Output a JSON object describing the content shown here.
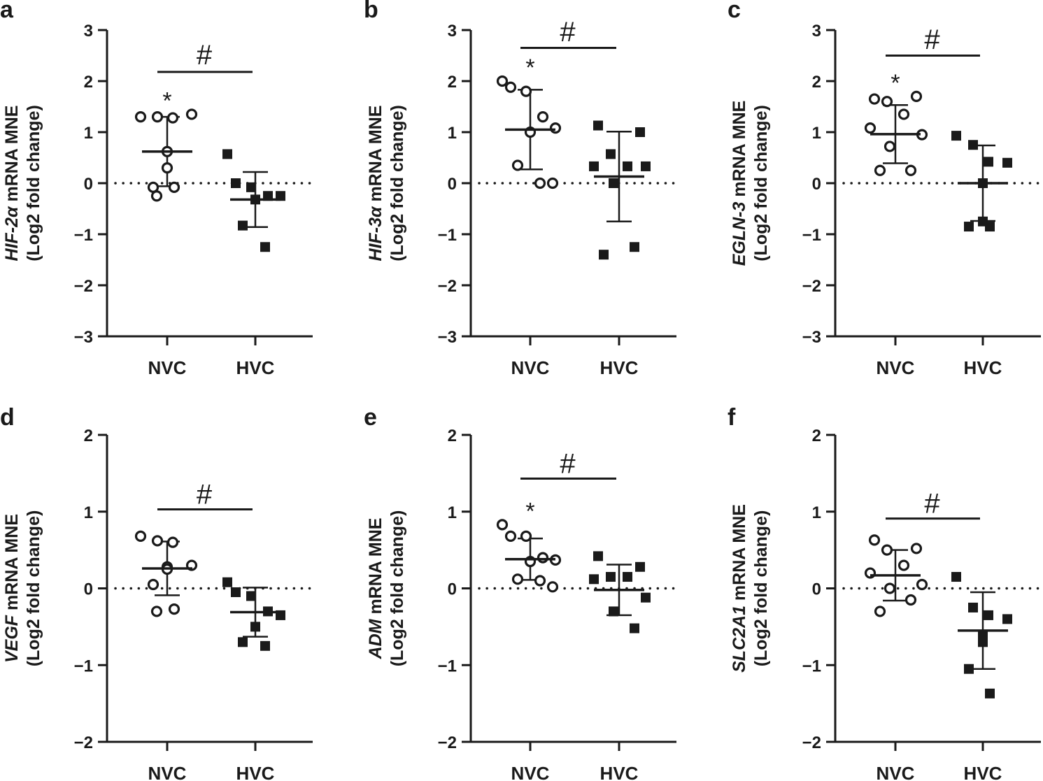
{
  "chart_data": [
    {
      "panel_letter": "a",
      "type": "scatter",
      "ylabel_gene": "HIF-2α",
      "ylabel_suffix": " mRNA MNE",
      "ylabel_line2": "(Log2 fold change)",
      "ylim": [
        -3,
        3
      ],
      "yticks": [
        -3,
        -2,
        -1,
        0,
        1,
        2,
        3
      ],
      "categories": [
        "NVC",
        "HVC"
      ],
      "groups": [
        {
          "name": "NVC",
          "marker": "open-circle",
          "values": [
            1.3,
            1.3,
            1.28,
            1.35,
            0.62,
            0.3,
            -0.08,
            -0.08,
            -0.25
          ],
          "mean": 0.62,
          "sd": 0.68,
          "annotation": "*"
        },
        {
          "name": "HVC",
          "marker": "filled-square",
          "values": [
            0.57,
            0.0,
            -0.08,
            -0.25,
            -0.25,
            -0.32,
            -0.83,
            -1.25
          ],
          "mean": -0.32,
          "sd": 0.54,
          "annotation": ""
        }
      ],
      "significance": {
        "label": "#",
        "y": 2.18,
        "label_y": 2.55
      },
      "reference_line": 0
    },
    {
      "panel_letter": "b",
      "type": "scatter",
      "ylabel_gene": "HIF-3α",
      "ylabel_suffix": " mRNA MNE",
      "ylabel_line2": "(Log2 fold change)",
      "ylim": [
        -3,
        3
      ],
      "yticks": [
        -3,
        -2,
        -1,
        0,
        1,
        2,
        3
      ],
      "categories": [
        "NVC",
        "HVC"
      ],
      "groups": [
        {
          "name": "NVC",
          "marker": "open-circle",
          "values": [
            2.0,
            1.88,
            1.8,
            1.3,
            1.08,
            1.0,
            0.35,
            0.0,
            0.0
          ],
          "mean": 1.05,
          "sd": 0.78,
          "annotation": "*"
        },
        {
          "name": "HVC",
          "marker": "filled-square",
          "values": [
            1.13,
            1.0,
            0.57,
            0.33,
            0.33,
            0.33,
            0.0,
            -1.25,
            -1.4
          ],
          "mean": 0.13,
          "sd": 0.88,
          "annotation": ""
        }
      ],
      "significance": {
        "label": "#",
        "y": 2.65,
        "label_y": 3.0
      },
      "reference_line": 0
    },
    {
      "panel_letter": "c",
      "type": "scatter",
      "ylabel_gene": "EGLN-3",
      "ylabel_suffix": " mRNA MNE",
      "ylabel_line2": "(Log2 fold change)",
      "ylim": [
        -3,
        3
      ],
      "yticks": [
        -3,
        -2,
        -1,
        0,
        1,
        2,
        3
      ],
      "categories": [
        "NVC",
        "HVC"
      ],
      "groups": [
        {
          "name": "NVC",
          "marker": "open-circle",
          "values": [
            1.65,
            1.7,
            1.6,
            1.35,
            1.08,
            0.95,
            0.72,
            0.25,
            0.25
          ],
          "mean": 0.96,
          "sd": 0.57,
          "annotation": "*"
        },
        {
          "name": "HVC",
          "marker": "filled-square",
          "values": [
            0.93,
            0.75,
            0.42,
            0.4,
            0.0,
            -0.75,
            -0.85,
            -0.85
          ],
          "mean": 0.0,
          "sd": 0.74,
          "annotation": ""
        }
      ],
      "significance": {
        "label": "#",
        "y": 2.5,
        "label_y": 2.85
      },
      "reference_line": 0
    },
    {
      "panel_letter": "d",
      "type": "scatter",
      "ylabel_gene": "VEGF",
      "ylabel_suffix": " mRNA MNE",
      "ylabel_line2": "(Log2 fold change)",
      "ylim": [
        -2,
        2
      ],
      "yticks": [
        -2,
        -1,
        0,
        1,
        2
      ],
      "categories": [
        "NVC",
        "HVC"
      ],
      "groups": [
        {
          "name": "NVC",
          "marker": "open-circle",
          "values": [
            0.68,
            0.62,
            0.6,
            0.3,
            0.28,
            0.25,
            0.05,
            -0.27,
            -0.3
          ],
          "mean": 0.26,
          "sd": 0.35,
          "annotation": ""
        },
        {
          "name": "HVC",
          "marker": "filled-square",
          "values": [
            0.08,
            -0.05,
            -0.1,
            -0.3,
            -0.35,
            -0.5,
            -0.7,
            -0.75
          ],
          "mean": -0.31,
          "sd": 0.32,
          "annotation": ""
        }
      ],
      "significance": {
        "label": "#",
        "y": 1.03,
        "label_y": 1.25
      },
      "reference_line": 0
    },
    {
      "panel_letter": "e",
      "type": "scatter",
      "ylabel_gene": "ADM",
      "ylabel_suffix": " mRNA MNE",
      "ylabel_line2": "(Log2 fold change)",
      "ylim": [
        -2,
        2
      ],
      "yticks": [
        -2,
        -1,
        0,
        1,
        2
      ],
      "categories": [
        "NVC",
        "HVC"
      ],
      "groups": [
        {
          "name": "NVC",
          "marker": "open-circle",
          "values": [
            0.83,
            0.68,
            0.68,
            0.4,
            0.37,
            0.35,
            0.12,
            0.1,
            0.02
          ],
          "mean": 0.38,
          "sd": 0.27,
          "annotation": "*"
        },
        {
          "name": "HVC",
          "marker": "filled-square",
          "values": [
            0.42,
            0.28,
            0.15,
            0.15,
            0.12,
            -0.12,
            -0.3,
            -0.52
          ],
          "mean": -0.02,
          "sd": 0.33,
          "annotation": ""
        }
      ],
      "significance": {
        "label": "#",
        "y": 1.43,
        "label_y": 1.65
      },
      "reference_line": 0
    },
    {
      "panel_letter": "f",
      "type": "scatter",
      "ylabel_gene": "SLC2A1",
      "ylabel_suffix": " mRNA MNE",
      "ylabel_line2": "(Log2 fold change)",
      "ylim": [
        -2,
        2
      ],
      "yticks": [
        -2,
        -1,
        0,
        1,
        2
      ],
      "categories": [
        "NVC",
        "HVC"
      ],
      "groups": [
        {
          "name": "NVC",
          "marker": "open-circle",
          "values": [
            0.63,
            0.52,
            0.5,
            0.3,
            0.2,
            0.05,
            0.0,
            -0.15,
            -0.3
          ],
          "mean": 0.17,
          "sd": 0.33,
          "annotation": ""
        },
        {
          "name": "HVC",
          "marker": "filled-square",
          "values": [
            0.15,
            -0.25,
            -0.35,
            -0.4,
            -0.62,
            -0.7,
            -1.05,
            -1.37
          ],
          "mean": -0.55,
          "sd": 0.5,
          "annotation": ""
        }
      ],
      "significance": {
        "label": "#",
        "y": 0.91,
        "label_y": 1.13
      },
      "reference_line": 0
    }
  ]
}
